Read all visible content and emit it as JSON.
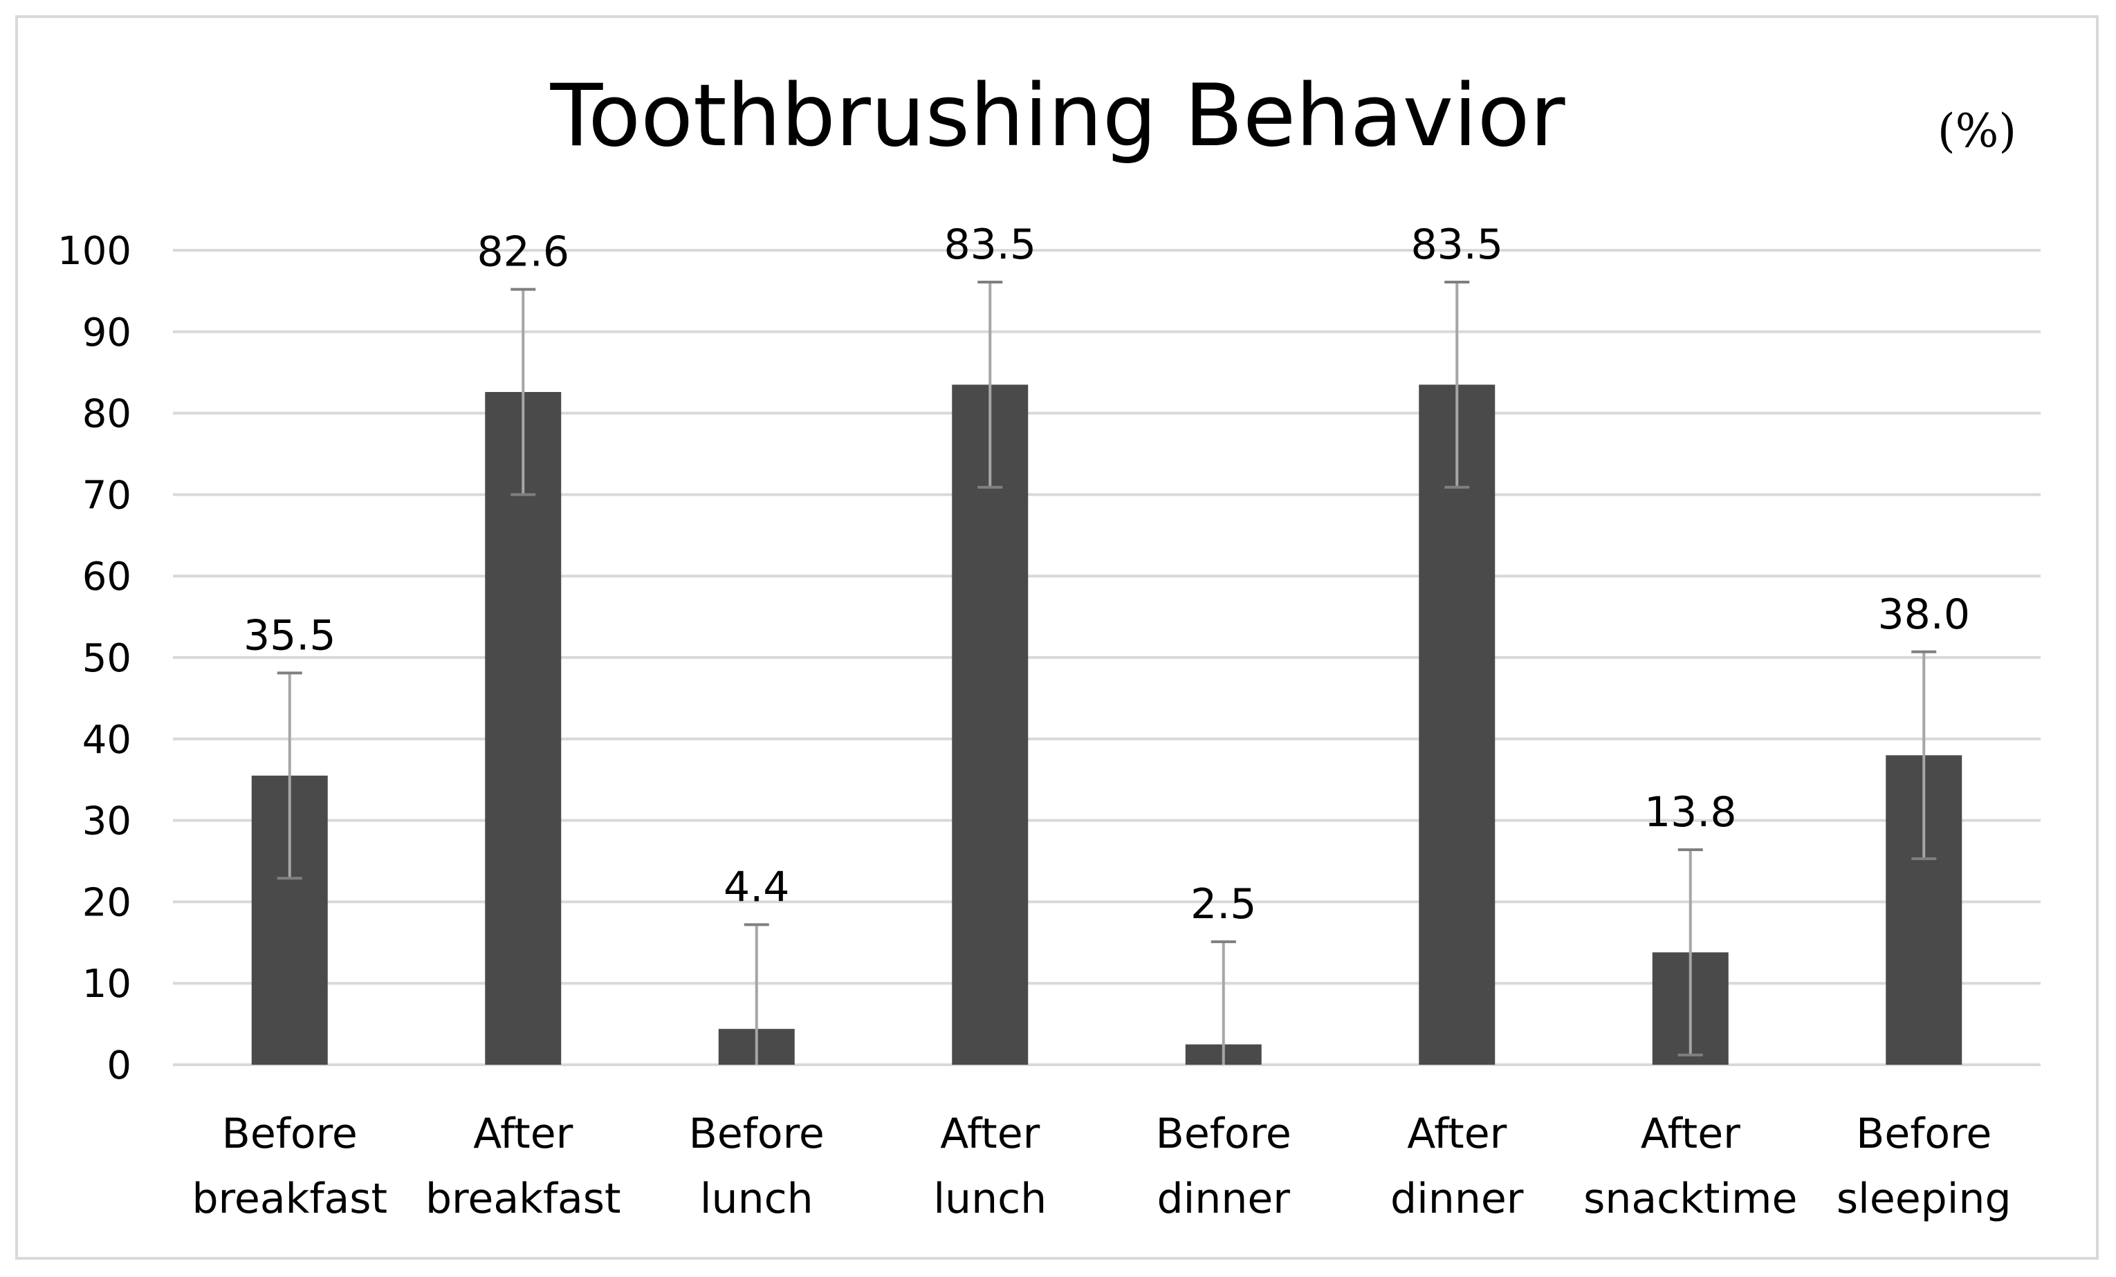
{
  "chart_data": {
    "type": "bar",
    "title": "Toothbrushing Behavior",
    "unit_label": "(%)",
    "xlabel": "",
    "ylabel": "",
    "ylim": [
      0,
      100
    ],
    "yticks": [
      0,
      10,
      20,
      30,
      40,
      50,
      60,
      70,
      80,
      90,
      100
    ],
    "grid": true,
    "legend": "none",
    "categories": [
      [
        "Before",
        "breakfast"
      ],
      [
        "After",
        "breakfast"
      ],
      [
        "Before",
        "lunch"
      ],
      [
        "After",
        "lunch"
      ],
      [
        "Before",
        "dinner"
      ],
      [
        "After",
        "dinner"
      ],
      [
        "After",
        "snacktime"
      ],
      [
        "Before",
        "sleeping"
      ]
    ],
    "values": [
      35.5,
      82.6,
      4.4,
      83.5,
      2.5,
      83.5,
      13.8,
      38.0
    ],
    "value_labels": [
      "35.5",
      "82.6",
      "4.4",
      "83.5",
      "2.5",
      "83.5",
      "13.8",
      "38.0"
    ],
    "error": [
      12.6,
      12.6,
      12.8,
      12.6,
      12.6,
      12.6,
      12.6,
      12.7
    ],
    "colors": {
      "bar": "#4a4a4a",
      "error_bar": "#a6a6a6",
      "grid": "#d9d9d9"
    }
  }
}
